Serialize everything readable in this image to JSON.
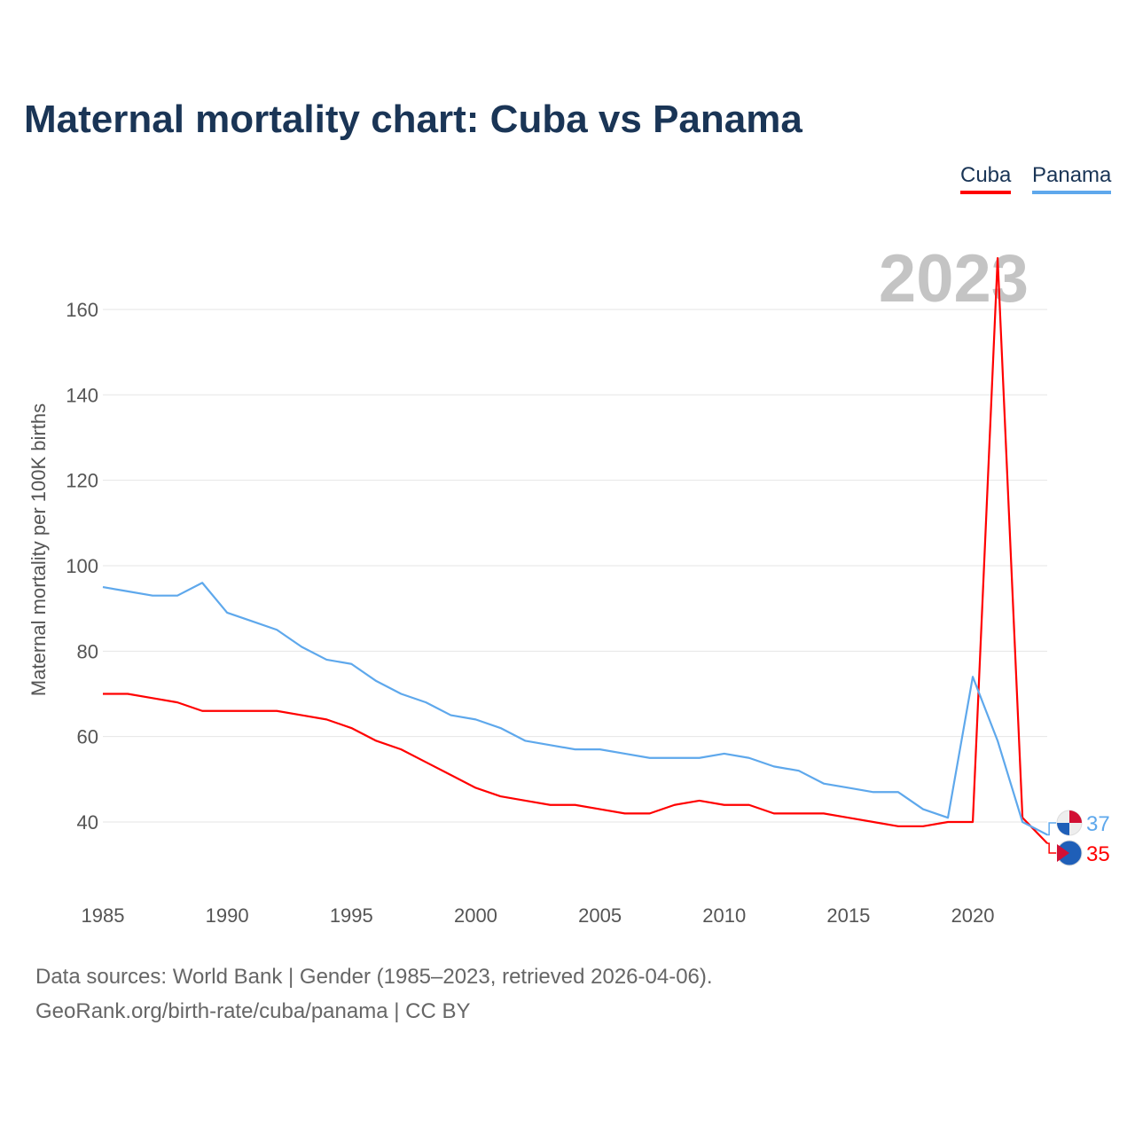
{
  "title": "Maternal mortality chart: Cuba vs Panama",
  "source_line1": "Data sources: World Bank | Gender (1985–2023, retrieved 2026-04-06).",
  "source_line2": "GeoRank.org/birth-rate/cuba/panama | CC BY",
  "chart_data": {
    "type": "line",
    "title": "Maternal mortality chart: Cuba vs Panama",
    "ylabel": "Maternal mortality per 100K births",
    "xlabel": "",
    "year_label": "2023",
    "ylim": [
      30,
      175
    ],
    "yticks": [
      "40",
      "60",
      "80",
      "100",
      "120",
      "140",
      "160"
    ],
    "xticks": [
      "1985",
      "1990",
      "1995",
      "2000",
      "2005",
      "2010",
      "2015",
      "2020"
    ],
    "legend_position": "top-right",
    "x": [
      1985,
      1986,
      1987,
      1988,
      1989,
      1990,
      1991,
      1992,
      1993,
      1994,
      1995,
      1996,
      1997,
      1998,
      1999,
      2000,
      2001,
      2002,
      2003,
      2004,
      2005,
      2006,
      2007,
      2008,
      2009,
      2010,
      2011,
      2012,
      2013,
      2014,
      2015,
      2016,
      2017,
      2018,
      2019,
      2020,
      2021,
      2022,
      2023
    ],
    "series": [
      {
        "name": "Cuba",
        "color": "#ff0000",
        "end_label": "35",
        "values": [
          70,
          70,
          69,
          68,
          66,
          66,
          66,
          66,
          65,
          64,
          62,
          59,
          57,
          54,
          51,
          48,
          46,
          45,
          44,
          44,
          43,
          42,
          42,
          44,
          45,
          44,
          44,
          42,
          42,
          42,
          41,
          40,
          39,
          39,
          40,
          40,
          172,
          41,
          35
        ]
      },
      {
        "name": "Panama",
        "color": "#5ea8ec",
        "end_label": "37",
        "values": [
          95,
          94,
          93,
          93,
          96,
          89,
          87,
          85,
          81,
          78,
          77,
          73,
          70,
          68,
          65,
          64,
          62,
          59,
          58,
          57,
          57,
          56,
          55,
          55,
          55,
          56,
          55,
          53,
          52,
          49,
          48,
          47,
          47,
          43,
          41,
          74,
          59,
          40,
          37
        ]
      }
    ]
  }
}
